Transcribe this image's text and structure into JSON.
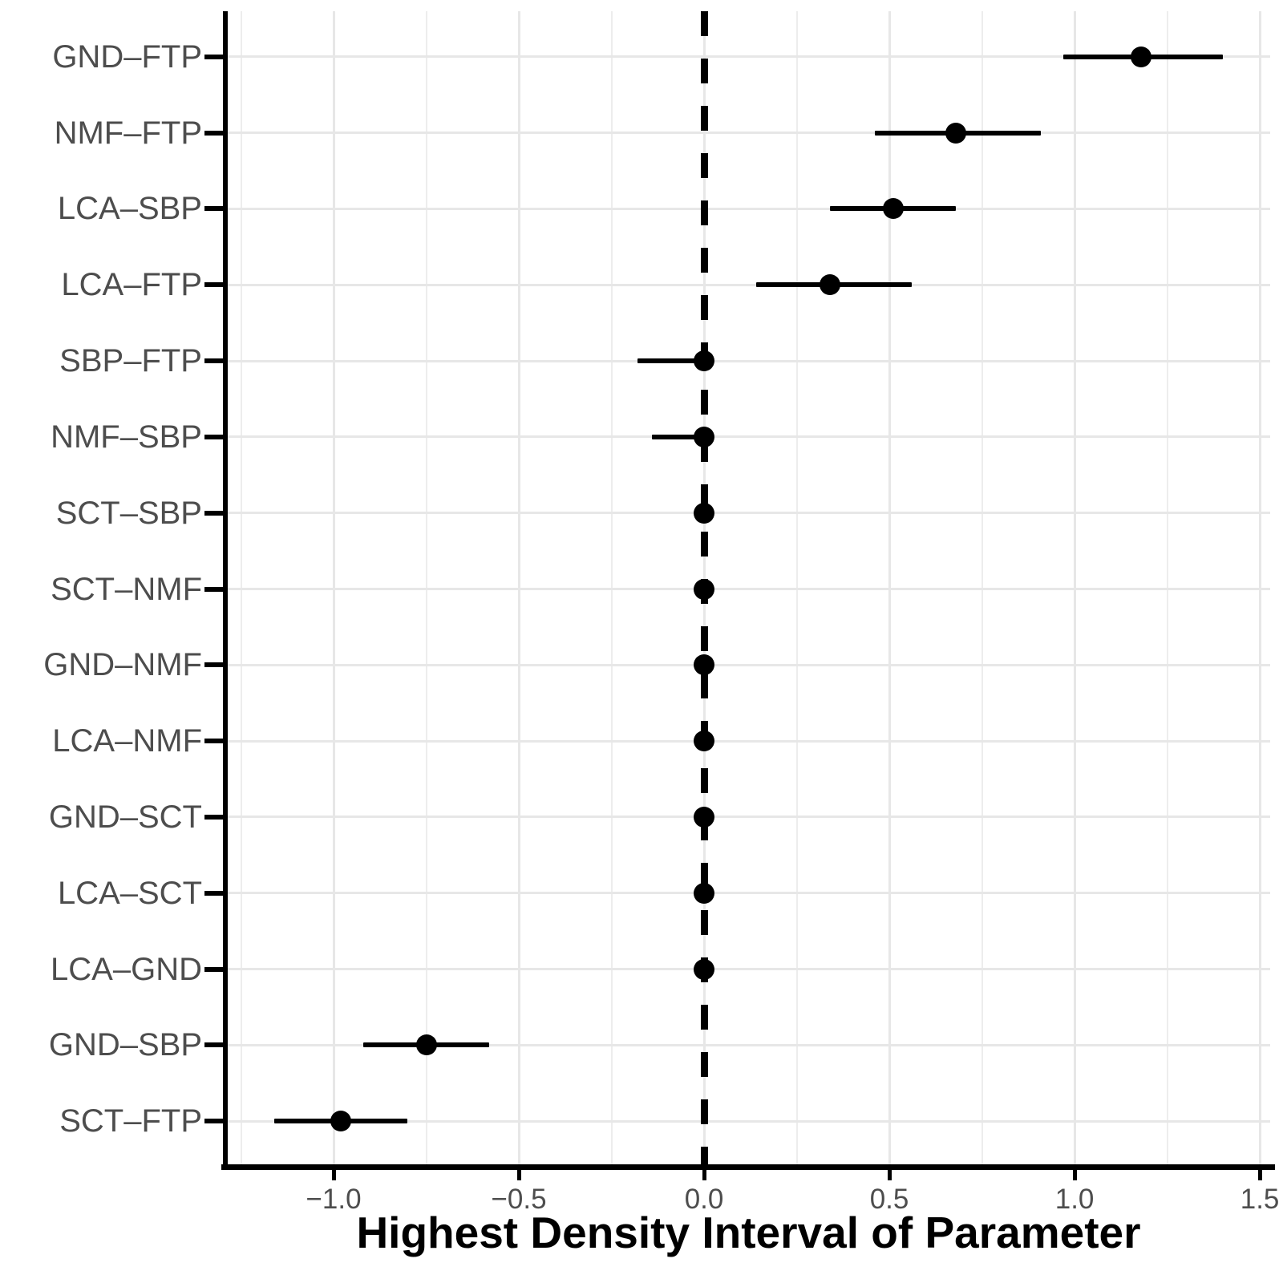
{
  "chart_data": {
    "type": "forest-interval",
    "title": "",
    "xlabel": "Highest Density Interval of Parameter",
    "ylabel": "",
    "rows": [
      {
        "label": "GND–FTP",
        "estimate": 1.18,
        "lower": 0.97,
        "upper": 1.4
      },
      {
        "label": "NMF–FTP",
        "estimate": 0.68,
        "lower": 0.46,
        "upper": 0.91
      },
      {
        "label": "LCA–SBP",
        "estimate": 0.51,
        "lower": 0.34,
        "upper": 0.68
      },
      {
        "label": "LCA–FTP",
        "estimate": 0.34,
        "lower": 0.14,
        "upper": 0.56
      },
      {
        "label": "SBP–FTP",
        "estimate": 0.0,
        "lower": -0.18,
        "upper": 0.02
      },
      {
        "label": "NMF–SBP",
        "estimate": 0.0,
        "lower": -0.14,
        "upper": 0.02
      },
      {
        "label": "SCT–SBP",
        "estimate": 0.0,
        "lower": -0.02,
        "upper": 0.02
      },
      {
        "label": "SCT–NMF",
        "estimate": 0.0,
        "lower": -0.02,
        "upper": 0.02
      },
      {
        "label": "GND–NMF",
        "estimate": 0.0,
        "lower": -0.02,
        "upper": 0.02
      },
      {
        "label": "LCA–NMF",
        "estimate": 0.0,
        "lower": -0.02,
        "upper": 0.02
      },
      {
        "label": "GND–SCT",
        "estimate": 0.0,
        "lower": -0.02,
        "upper": 0.02
      },
      {
        "label": "LCA–SCT",
        "estimate": 0.0,
        "lower": -0.02,
        "upper": 0.02
      },
      {
        "label": "LCA–GND",
        "estimate": 0.0,
        "lower": -0.02,
        "upper": 0.02
      },
      {
        "label": "GND–SBP",
        "estimate": -0.75,
        "lower": -0.92,
        "upper": -0.58
      },
      {
        "label": "SCT–FTP",
        "estimate": -0.98,
        "lower": -1.16,
        "upper": -0.8
      }
    ],
    "x_axis": {
      "tick_values": [
        -1.0,
        -0.5,
        0.0,
        0.5,
        1.0,
        1.5
      ],
      "tick_labels": [
        "−1.0",
        "−0.5",
        "0.0",
        "0.5",
        "1.0",
        "1.5"
      ],
      "minor_tick_values": [
        -1.25,
        -0.75,
        -0.25,
        0.25,
        0.75,
        1.25
      ],
      "limits": [
        -1.288,
        1.528
      ]
    },
    "reference_line_x": 0,
    "grid": true,
    "legend_position": "none",
    "colors": {
      "point": "#000000",
      "interval": "#000000",
      "reference_line": "#000000",
      "grid_major": "#e7e7e7",
      "grid_minor": "#ededed",
      "axis_text": "#4d4d4d",
      "axis_line": "#000000",
      "title_text": "#000000",
      "background": "#ffffff"
    }
  }
}
